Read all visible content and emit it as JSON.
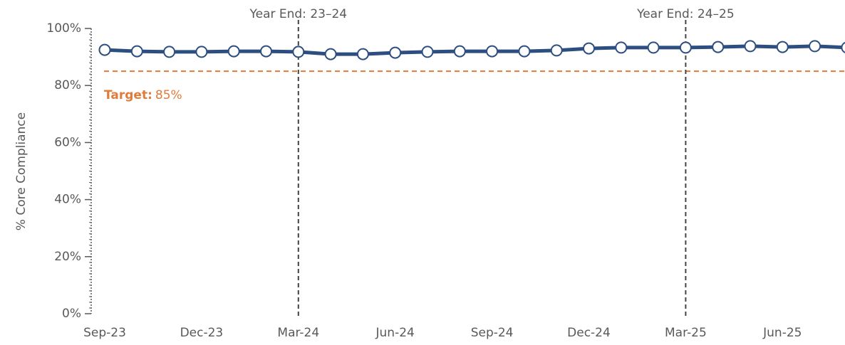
{
  "chart_data": {
    "type": "line",
    "y_label": "% Core Compliance",
    "categories": [
      "Sep-23",
      null,
      null,
      "Dec-23",
      null,
      null,
      "Mar-24",
      null,
      null,
      "Jun-24",
      null,
      null,
      "Sep-24",
      null,
      null,
      "Dec-24",
      null,
      null,
      "Mar-25",
      null,
      null,
      "Jun-25",
      null,
      null
    ],
    "series": [
      {
        "name": "Core Compliance",
        "color": "#2d4e80",
        "values": [
          92.5,
          92.0,
          91.8,
          91.8,
          92.0,
          92.0,
          91.8,
          91.0,
          91.0,
          91.5,
          91.8,
          92.0,
          92.0,
          92.0,
          92.3,
          93.0,
          93.3,
          93.3,
          93.3,
          93.5,
          93.8,
          93.5,
          93.8,
          93.3
        ]
      }
    ],
    "ylim": [
      0,
      100
    ],
    "yticks": [
      {
        "value": 0,
        "label": "0%"
      },
      {
        "value": 20,
        "label": "20%"
      },
      {
        "value": 40,
        "label": "40%"
      },
      {
        "value": 60,
        "label": "60%"
      },
      {
        "value": 80,
        "label": "80%"
      },
      {
        "value": 100,
        "label": "100%"
      }
    ],
    "target": {
      "label": "Target:",
      "value": 85,
      "value_label": "85%",
      "color": "#e07b39"
    },
    "annotations": [
      {
        "text": "Year End: 23–24",
        "at": "Mar-24"
      },
      {
        "text": "Year End: 24–25",
        "at": "Mar-25"
      }
    ]
  }
}
